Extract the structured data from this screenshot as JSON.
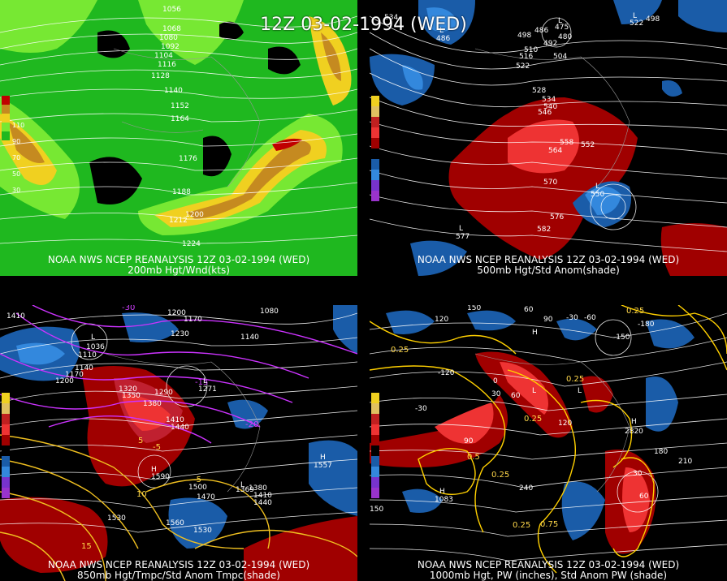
{
  "main_title": "12Z 03-02-1994 (WED)",
  "colors": {
    "wind_bg": "#1fb81f",
    "wind_light": "#77e833",
    "wind_yellow": "#f0d020",
    "wind_orange": "#c58a20",
    "wind_red": "#c00000",
    "anom_pos": "#a00000",
    "anom_pos2": "#ee3333",
    "anom_neg": "#1a5ca8",
    "anom_neg2": "#3388dd",
    "contour": "#ffffff",
    "temp_contour": "#cc33ff",
    "pw_contour": "#ffd000"
  },
  "panels": [
    {
      "id": "200mb",
      "footer_line1": "NOAA NWS NCEP REANALYSIS 12Z 03-02-1994 (WED)",
      "footer_line2": "200mb Hgt/Wnd(kts)",
      "scale_labels": [
        "110",
        "90",
        "70",
        "50",
        "30"
      ],
      "height_labels": [
        "1056",
        "1068",
        "1080",
        "1092",
        "1104",
        "1116",
        "1128",
        "1140",
        "1152",
        "1164",
        "1176",
        "1188",
        "1200",
        "1212",
        "1224"
      ]
    },
    {
      "id": "500mb",
      "footer_line1": "NOAA NWS NCEP REANALYSIS 12Z 03-02-1994 (WED)",
      "footer_line2": "500mb Hgt/Std Anom(shade)",
      "scale_labels": [
        "5",
        "4",
        "3",
        "2",
        "1",
        "0",
        "1",
        "2",
        "3",
        "4",
        "5"
      ],
      "height_labels": [
        "534",
        "498",
        "486",
        "492",
        "480",
        "510",
        "516",
        "504",
        "522",
        "528",
        "534",
        "540",
        "546",
        "558",
        "552",
        "564",
        "570",
        "576",
        "582",
        "498"
      ],
      "lows": [
        {
          "label": "L",
          "value": "486"
        },
        {
          "label": "L",
          "value": "475"
        },
        {
          "label": "L",
          "value": "550"
        },
        {
          "label": "L",
          "value": "577"
        },
        {
          "label": "L",
          "value": "522"
        }
      ]
    },
    {
      "id": "850mb",
      "footer_line1": "NOAA NWS NCEP REANALYSIS 12Z 03-02-1994 (WED)",
      "footer_line2": "850mb Hgt/Tmpc/Std Anom Tmpc(shade)",
      "scale_labels": [
        "5",
        "4",
        "3",
        "2",
        "1",
        "0",
        "1",
        "2",
        "3",
        "4",
        "5"
      ],
      "height_labels": [
        "1410",
        "1200",
        "1170",
        "1140",
        "1080",
        "1110",
        "1140",
        "1170",
        "1200",
        "1230",
        "1320",
        "1350",
        "1380",
        "1290",
        "1410",
        "1440",
        "1500",
        "1470",
        "1530",
        "1560",
        "1530",
        "1410",
        "1440",
        "1380"
      ],
      "temp_labels": [
        "-30",
        "-15",
        "-20",
        "-5",
        "-5",
        "5",
        "10",
        "15"
      ],
      "systems": [
        {
          "label": "L",
          "value": "1036"
        },
        {
          "label": "L",
          "value": "1271"
        },
        {
          "label": "H",
          "value": "1557"
        },
        {
          "label": "H",
          "value": "1590"
        },
        {
          "label": "L",
          "value": "1369"
        }
      ]
    },
    {
      "id": "1000mb",
      "footer_line1": "NOAA NWS NCEP REANALYSIS 12Z 03-02-1994 (WED)",
      "footer_line2": "1000mb Hgt, PW (inches), Std Anom PW (shade)",
      "scale_labels": [
        "5",
        "4",
        "3",
        "2",
        "1",
        "0",
        "1",
        "2",
        "3",
        "4",
        "5"
      ],
      "height_labels": [
        "150",
        "120",
        "60",
        "90",
        "-30",
        "-60",
        "-150",
        "-180",
        "-120",
        "0",
        "30",
        "60",
        "90",
        "120",
        "150",
        "180",
        "210",
        "240",
        "30",
        "60",
        "-30"
      ],
      "pw_labels": [
        "0.25",
        "0.25",
        "0.25",
        "0.25",
        "0.5",
        "0.25",
        "0.75",
        "0.25"
      ],
      "systems": [
        {
          "label": "H",
          "value": ""
        },
        {
          "label": "L",
          "value": ""
        },
        {
          "label": "L",
          "value": ""
        },
        {
          "label": "H",
          "value": "2820"
        },
        {
          "label": "H",
          "value": "1083"
        }
      ]
    }
  ]
}
